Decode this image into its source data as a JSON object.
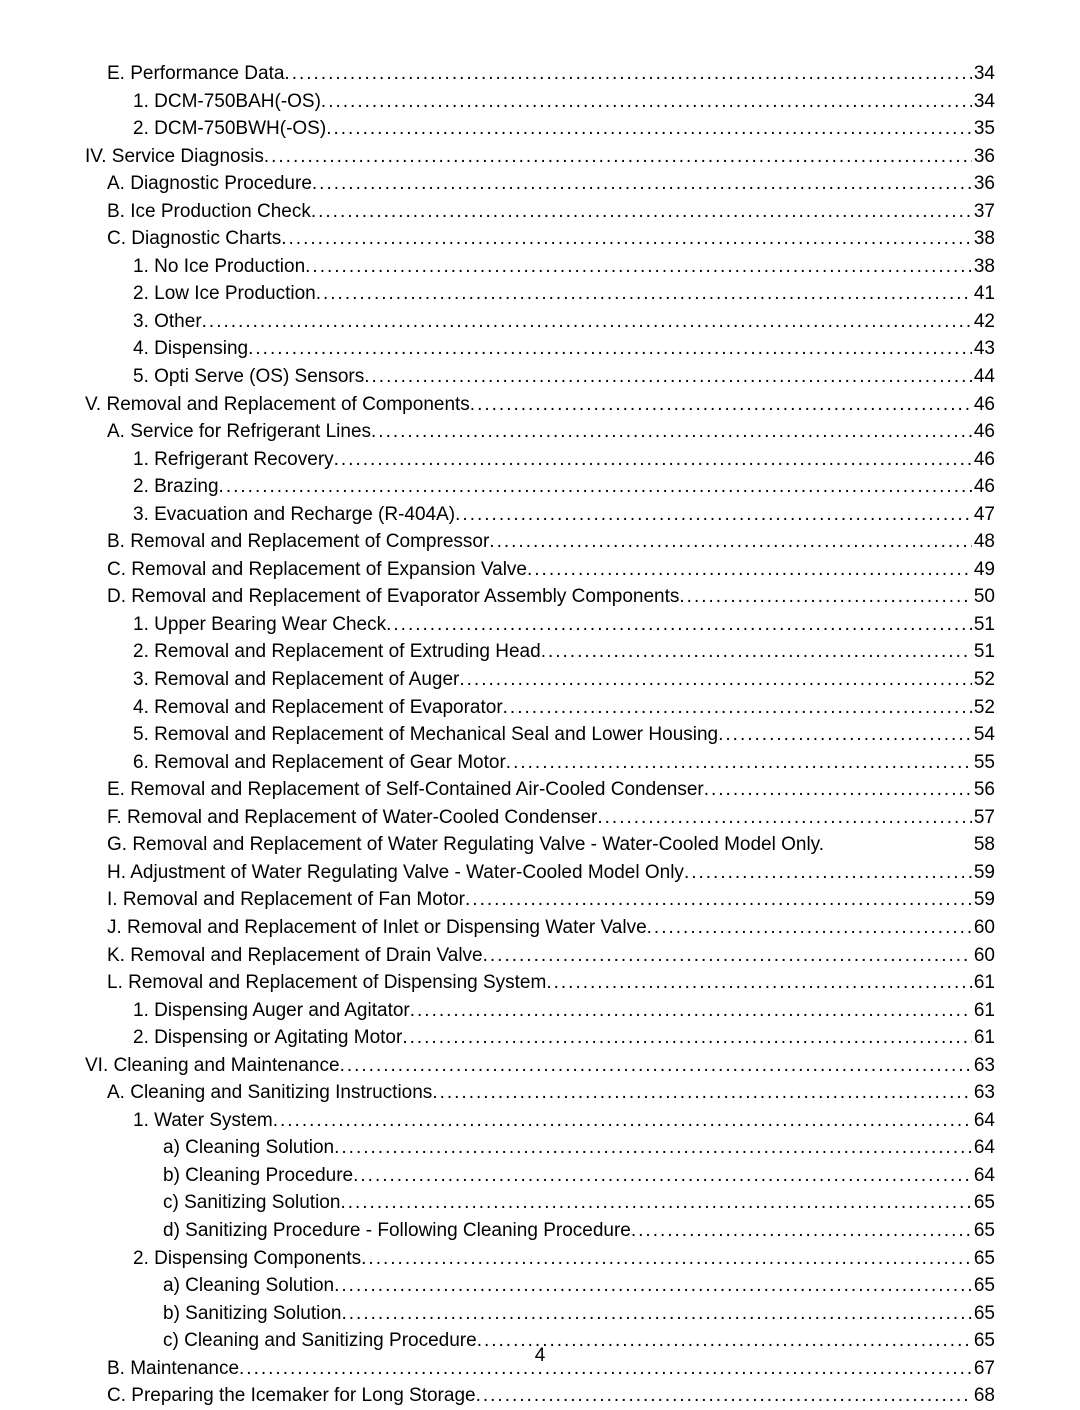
{
  "page_number": "4",
  "toc": [
    {
      "indent": 1,
      "label": "E. Performance Data",
      "page": "34",
      "dots": true
    },
    {
      "indent": 2,
      "label": "1. DCM-750BAH(-OS)",
      "page": "34",
      "dots": true
    },
    {
      "indent": 2,
      "label": "2. DCM-750BWH(-OS)",
      "page": "35",
      "dots": true
    },
    {
      "indent": 0,
      "label": "IV. Service Diagnosis",
      "page": "36",
      "dots": true
    },
    {
      "indent": 1,
      "label": "A. Diagnostic Procedure",
      "page": "36",
      "dots": true
    },
    {
      "indent": 1,
      "label": "B. Ice Production Check",
      "page": "37",
      "dots": true
    },
    {
      "indent": 1,
      "label": "C. Diagnostic Charts",
      "page": "38",
      "dots": true
    },
    {
      "indent": 2,
      "label": "1. No Ice Production",
      "page": "38",
      "dots": true
    },
    {
      "indent": 2,
      "label": "2. Low Ice Production",
      "page": "41",
      "dots": true
    },
    {
      "indent": 2,
      "label": "3. Other",
      "page": "42",
      "dots": true
    },
    {
      "indent": 2,
      "label": "4. Dispensing",
      "page": "43",
      "dots": true
    },
    {
      "indent": 2,
      "label": "5. Opti Serve (OS) Sensors",
      "page": "44",
      "dots": true
    },
    {
      "indent": 0,
      "label": "V. Removal and Replacement of Components",
      "page": "46",
      "dots": true
    },
    {
      "indent": 1,
      "label": "A. Service for Refrigerant Lines",
      "page": "46",
      "dots": true
    },
    {
      "indent": 2,
      "label": "1. Refrigerant Recovery",
      "page": "46",
      "dots": true
    },
    {
      "indent": 2,
      "label": "2. Brazing",
      "page": "46",
      "dots": true
    },
    {
      "indent": 2,
      "label": "3. Evacuation and Recharge (R-404A)",
      "page": "47",
      "dots": true
    },
    {
      "indent": 1,
      "label": "B. Removal and Replacement of Compressor",
      "page": "48",
      "dots": true
    },
    {
      "indent": 1,
      "label": "C. Removal and Replacement of Expansion Valve",
      "page": "49",
      "dots": true
    },
    {
      "indent": 1,
      "label": "D. Removal and Replacement of Evaporator Assembly Components",
      "page": "50",
      "dots": true
    },
    {
      "indent": 2,
      "label": "1. Upper Bearing Wear Check ",
      "page": "51",
      "dots": true
    },
    {
      "indent": 2,
      "label": "2. Removal and Replacement of Extruding Head",
      "page": "51",
      "dots": true
    },
    {
      "indent": 2,
      "label": "3. Removal and Replacement of Auger",
      "page": "52",
      "dots": true
    },
    {
      "indent": 2,
      "label": "4. Removal and Replacement of Evaporator",
      "page": "52",
      "dots": true
    },
    {
      "indent": 2,
      "label": "5. Removal and Replacement of Mechanical Seal and Lower Housing ",
      "page": "54",
      "dots": true
    },
    {
      "indent": 2,
      "label": "6. Removal and Replacement of Gear Motor",
      "page": "55",
      "dots": true
    },
    {
      "indent": 1,
      "label": "E. Removal and Replacement of Self-Contained Air-Cooled Condenser",
      "page": "56",
      "dots": true
    },
    {
      "indent": 1,
      "label": "F. Removal and Replacement of Water-Cooled Condenser",
      "page": "57",
      "dots": true
    },
    {
      "indent": 1,
      "label": "G. Removal and Replacement of Water Regulating Valve - Water-Cooled Model Only. ",
      "page": "58",
      "dots": false
    },
    {
      "indent": 1,
      "label": "H. Adjustment of Water Regulating Valve - Water-Cooled Model Only",
      "page": "59",
      "dots": true
    },
    {
      "indent": 1,
      "label": "I. Removal and Replacement of Fan Motor",
      "page": "59",
      "dots": true
    },
    {
      "indent": 1,
      "label": "J. Removal and Replacement of Inlet or Dispensing Water Valve",
      "page": "60",
      "dots": true
    },
    {
      "indent": 1,
      "label": "K. Removal and Replacement of Drain Valve",
      "page": "60",
      "dots": true
    },
    {
      "indent": 1,
      "label": "L. Removal and Replacement of Dispensing System",
      "page": "61",
      "dots": true
    },
    {
      "indent": 2,
      "label": "1. Dispensing Auger and Agitator",
      "page": "61",
      "dots": true
    },
    {
      "indent": 2,
      "label": "2. Dispensing or Agitating Motor",
      "page": "61",
      "dots": true
    },
    {
      "indent": 0,
      "label": "VI. Cleaning and Maintenance",
      "page": "63",
      "dots": true
    },
    {
      "indent": 1,
      "label": "A. Cleaning and Sanitizing Instructions",
      "page": "63",
      "dots": true
    },
    {
      "indent": 2,
      "label": "1. Water System",
      "page": "64",
      "dots": true
    },
    {
      "indent": 3,
      "label": "a) Cleaning Solution",
      "page": "64",
      "dots": true
    },
    {
      "indent": 3,
      "label": "b) Cleaning Procedure",
      "page": "64",
      "dots": true
    },
    {
      "indent": 3,
      "label": "c) Sanitizing Solution",
      "page": "65",
      "dots": true
    },
    {
      "indent": 3,
      "label": "d) Sanitizing Procedure - Following Cleaning Procedure ",
      "page": "65",
      "dots": true
    },
    {
      "indent": 2,
      "label": "2. Dispensing Components",
      "page": "65",
      "dots": true
    },
    {
      "indent": 3,
      "label": "a) Cleaning Solution",
      "page": "65",
      "dots": true
    },
    {
      "indent": 3,
      "label": "b) Sanitizing Solution",
      "page": "65",
      "dots": true
    },
    {
      "indent": 3,
      "label": "c) Cleaning and Sanitizing Procedure",
      "page": "65",
      "dots": true
    },
    {
      "indent": 1,
      "label": "B. Maintenance",
      "page": "67",
      "dots": true
    },
    {
      "indent": 1,
      "label": "C. Preparing the Icemaker for Long Storage",
      "page": "68",
      "dots": true
    }
  ]
}
